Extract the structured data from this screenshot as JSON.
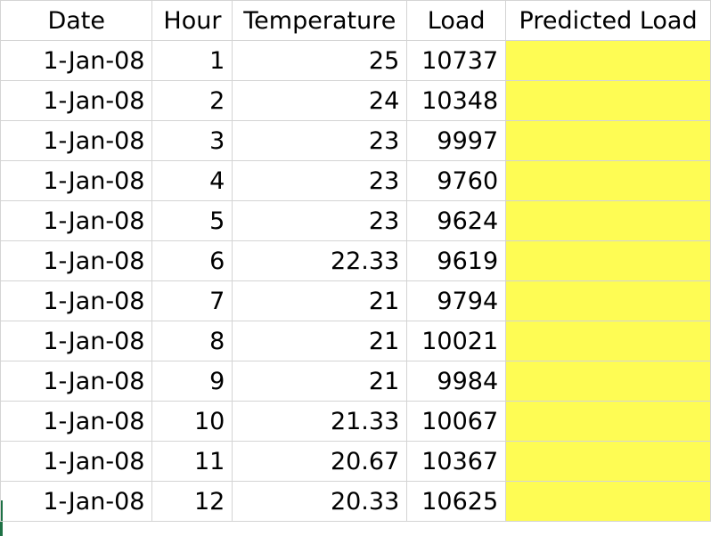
{
  "sheet": {
    "headers": {
      "date": "Date",
      "hour": "Hour",
      "temperature": "Temperature",
      "load": "Load",
      "predicted_load": "Predicted Load"
    },
    "rows": [
      {
        "date": "1-Jan-08",
        "hour": "1",
        "temperature": "25",
        "load": "10737",
        "predicted_load": ""
      },
      {
        "date": "1-Jan-08",
        "hour": "2",
        "temperature": "24",
        "load": "10348",
        "predicted_load": ""
      },
      {
        "date": "1-Jan-08",
        "hour": "3",
        "temperature": "23",
        "load": "9997",
        "predicted_load": ""
      },
      {
        "date": "1-Jan-08",
        "hour": "4",
        "temperature": "23",
        "load": "9760",
        "predicted_load": ""
      },
      {
        "date": "1-Jan-08",
        "hour": "5",
        "temperature": "23",
        "load": "9624",
        "predicted_load": ""
      },
      {
        "date": "1-Jan-08",
        "hour": "6",
        "temperature": "22.33",
        "load": "9619",
        "predicted_load": ""
      },
      {
        "date": "1-Jan-08",
        "hour": "7",
        "temperature": "21",
        "load": "9794",
        "predicted_load": ""
      },
      {
        "date": "1-Jan-08",
        "hour": "8",
        "temperature": "21",
        "load": "10021",
        "predicted_load": ""
      },
      {
        "date": "1-Jan-08",
        "hour": "9",
        "temperature": "21",
        "load": "9984",
        "predicted_load": ""
      },
      {
        "date": "1-Jan-08",
        "hour": "10",
        "temperature": "21.33",
        "load": "10067",
        "predicted_load": ""
      },
      {
        "date": "1-Jan-08",
        "hour": "11",
        "temperature": "20.67",
        "load": "10367",
        "predicted_load": ""
      },
      {
        "date": "1-Jan-08",
        "hour": "12",
        "temperature": "20.33",
        "load": "10625",
        "predicted_load": ""
      }
    ],
    "colors": {
      "highlight": "#fefc54",
      "grid": "#d4d4d4",
      "edge_marker": "#1e7145"
    }
  }
}
